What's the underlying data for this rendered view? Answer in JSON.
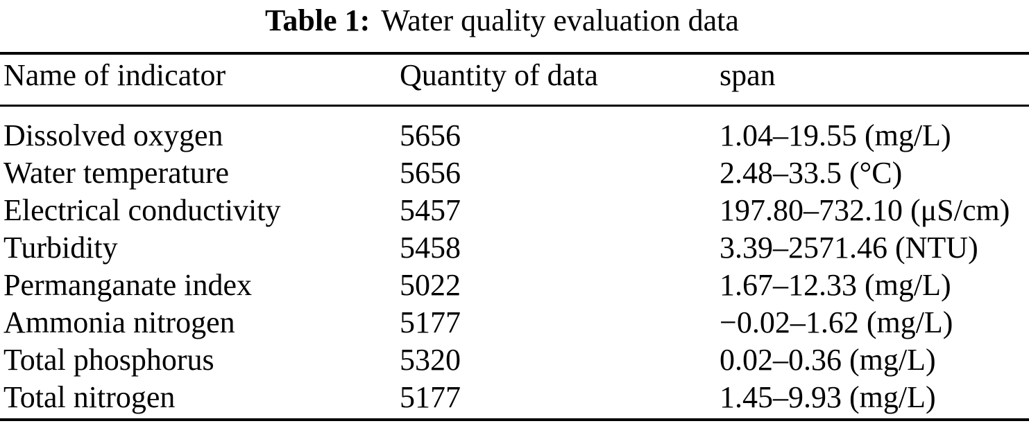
{
  "caption": {
    "label": "Table 1:",
    "text": "Water quality evaluation data"
  },
  "table": {
    "columns": {
      "name": "Name of indicator",
      "quantity": "Quantity of data",
      "span": "span"
    },
    "rows": [
      {
        "name": "Dissolved oxygen",
        "quantity": "5656",
        "span": "1.04–19.55 (mg/L)"
      },
      {
        "name": "Water temperature",
        "quantity": "5656",
        "span": "2.48–33.5 (°C)"
      },
      {
        "name": "Electrical conductivity",
        "quantity": "5457",
        "span": "197.80–732.10 (μS/cm)"
      },
      {
        "name": "Turbidity",
        "quantity": "5458",
        "span": "3.39–2571.46 (NTU)"
      },
      {
        "name": "Permanganate index",
        "quantity": "5022",
        "span": "1.67–12.33 (mg/L)"
      },
      {
        "name": "Ammonia nitrogen",
        "quantity": "5177",
        "span": "−0.02–1.62 (mg/L)"
      },
      {
        "name": "Total phosphorus",
        "quantity": "5320",
        "span": "0.02–0.36 (mg/L)"
      },
      {
        "name": "Total nitrogen",
        "quantity": "5177",
        "span": "1.45–9.93 (mg/L)"
      }
    ]
  },
  "colors": {
    "text": "#000000",
    "background": "#ffffff",
    "rule": "#000000"
  }
}
